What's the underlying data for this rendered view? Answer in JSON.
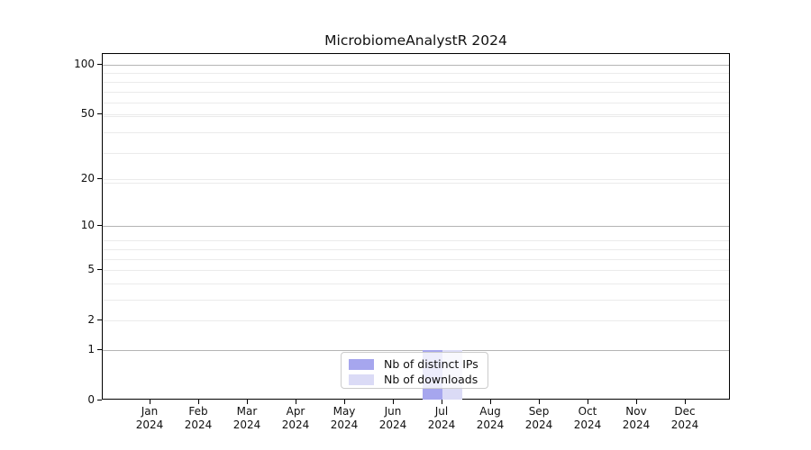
{
  "chart_data": {
    "type": "bar",
    "title": "MicrobiomeAnalystR 2024",
    "x_tick_labels": [
      [
        "Jan",
        "2024"
      ],
      [
        "Feb",
        "2024"
      ],
      [
        "Mar",
        "2024"
      ],
      [
        "Apr",
        "2024"
      ],
      [
        "May",
        "2024"
      ],
      [
        "Jun",
        "2024"
      ],
      [
        "Jul",
        "2024"
      ],
      [
        "Aug",
        "2024"
      ],
      [
        "Sep",
        "2024"
      ],
      [
        "Oct",
        "2024"
      ],
      [
        "Nov",
        "2024"
      ],
      [
        "Dec",
        "2024"
      ]
    ],
    "series": [
      {
        "name": "Nb of distinct IPs",
        "color": "#a6a6ee",
        "values": [
          0,
          0,
          0,
          0,
          0,
          0,
          1,
          0,
          0,
          0,
          0,
          0
        ]
      },
      {
        "name": "Nb of downloads",
        "color": "#dbdbf6",
        "values": [
          0,
          0,
          0,
          0,
          0,
          0,
          1,
          0,
          0,
          0,
          0,
          0
        ]
      }
    ],
    "y_ticks": [
      0,
      1,
      2,
      5,
      10,
      20,
      50,
      100
    ],
    "y_scale": "log1p",
    "ylim": [
      0,
      116
    ],
    "grid": true,
    "legend": {
      "position": "lower center",
      "labels": [
        "Nb of distinct IPs",
        "Nb of downloads"
      ]
    },
    "colors": {
      "major_grid": "#b4b4b4",
      "minor_grid": "#ebebeb",
      "axis": "#000000",
      "background": "#ffffff"
    }
  }
}
